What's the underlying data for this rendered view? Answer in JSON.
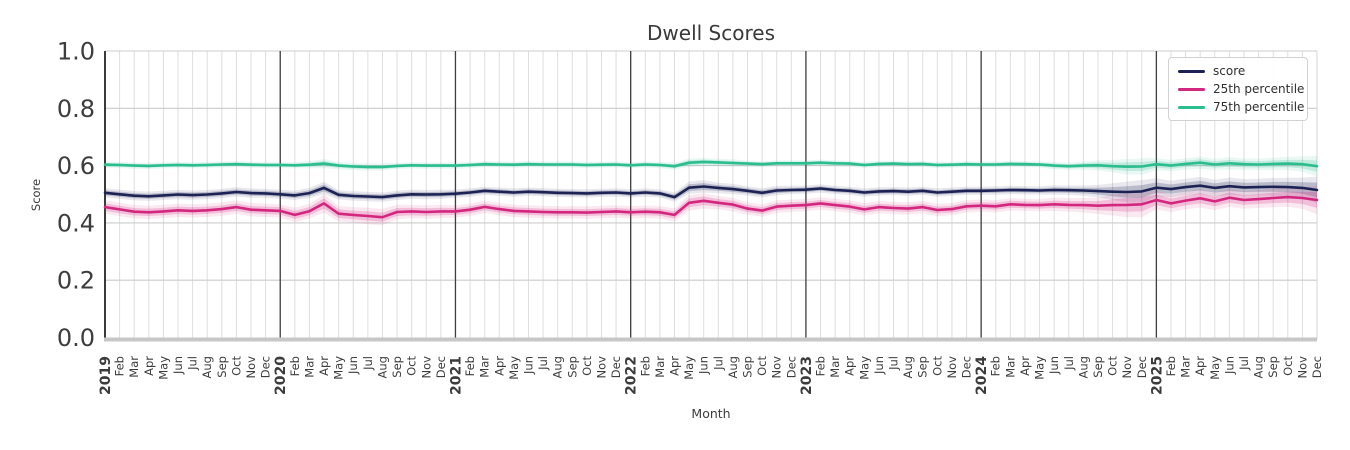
{
  "chart_data": {
    "type": "line",
    "title": "Dwell Scores",
    "xlabel": "Month",
    "ylabel": "Score",
    "ylim": [
      0.0,
      1.0
    ],
    "yticks": [
      0.0,
      0.2,
      0.4,
      0.6,
      0.8,
      1.0
    ],
    "ytick_labels": [
      "0.0",
      "0.2",
      "0.4",
      "0.6",
      "0.8",
      "1.0"
    ],
    "grid": true,
    "legend_position": "upper right",
    "x_labels": [
      "2019",
      "Feb",
      "Mar",
      "Apr",
      "May",
      "Jun",
      "Jul",
      "Aug",
      "Sep",
      "Oct",
      "Nov",
      "Dec",
      "2020",
      "Feb",
      "Mar",
      "Apr",
      "May",
      "Jun",
      "Jul",
      "Aug",
      "Sep",
      "Oct",
      "Nov",
      "Dec",
      "2021",
      "Feb",
      "Mar",
      "Apr",
      "May",
      "Jun",
      "Jul",
      "Aug",
      "Sep",
      "Oct",
      "Nov",
      "Dec",
      "2022",
      "Feb",
      "Mar",
      "Apr",
      "May",
      "Jun",
      "Jul",
      "Aug",
      "Sep",
      "Oct",
      "Nov",
      "Dec",
      "2023",
      "Feb",
      "Mar",
      "Apr",
      "May",
      "Jun",
      "Jul",
      "Aug",
      "Sep",
      "Oct",
      "Nov",
      "Dec",
      "2024",
      "Feb",
      "Mar",
      "Apr",
      "May",
      "Jun",
      "Jul",
      "Aug",
      "Sep",
      "Oct",
      "Nov",
      "Dec",
      "2025",
      "Feb",
      "Mar",
      "Apr",
      "May",
      "Jun",
      "Jul",
      "Aug",
      "Sep",
      "Oct",
      "Nov",
      "Dec"
    ],
    "year_tick_indices": [
      0,
      12,
      24,
      36,
      48,
      60,
      72
    ],
    "series": [
      {
        "name": "score",
        "color": "#1c2254",
        "values": [
          0.505,
          0.5,
          0.495,
          0.493,
          0.496,
          0.499,
          0.497,
          0.499,
          0.503,
          0.508,
          0.504,
          0.503,
          0.5,
          0.496,
          0.504,
          0.522,
          0.498,
          0.494,
          0.492,
          0.49,
          0.496,
          0.5,
          0.499,
          0.5,
          0.502,
          0.506,
          0.512,
          0.509,
          0.506,
          0.509,
          0.507,
          0.505,
          0.504,
          0.503,
          0.505,
          0.506,
          0.503,
          0.506,
          0.503,
          0.49,
          0.523,
          0.527,
          0.522,
          0.518,
          0.512,
          0.505,
          0.513,
          0.515,
          0.516,
          0.52,
          0.515,
          0.512,
          0.506,
          0.51,
          0.511,
          0.509,
          0.512,
          0.506,
          0.509,
          0.512,
          0.512,
          0.513,
          0.515,
          0.514,
          0.513,
          0.515,
          0.514,
          0.513,
          0.511,
          0.509,
          0.508,
          0.51,
          0.523,
          0.518,
          0.525,
          0.53,
          0.522,
          0.528,
          0.524,
          0.525,
          0.526,
          0.525,
          0.522,
          0.515
        ],
        "band": [
          0.009,
          0.009,
          0.009,
          0.009,
          0.009,
          0.009,
          0.009,
          0.009,
          0.009,
          0.009,
          0.009,
          0.009,
          0.009,
          0.009,
          0.01,
          0.012,
          0.009,
          0.009,
          0.009,
          0.009,
          0.009,
          0.009,
          0.009,
          0.009,
          0.008,
          0.008,
          0.008,
          0.008,
          0.008,
          0.008,
          0.008,
          0.008,
          0.008,
          0.008,
          0.008,
          0.008,
          0.008,
          0.008,
          0.008,
          0.009,
          0.012,
          0.012,
          0.01,
          0.01,
          0.009,
          0.009,
          0.009,
          0.008,
          0.008,
          0.008,
          0.008,
          0.008,
          0.008,
          0.008,
          0.008,
          0.008,
          0.008,
          0.008,
          0.008,
          0.008,
          0.008,
          0.008,
          0.008,
          0.008,
          0.008,
          0.009,
          0.009,
          0.01,
          0.012,
          0.016,
          0.02,
          0.022,
          0.018,
          0.016,
          0.016,
          0.017,
          0.016,
          0.017,
          0.016,
          0.016,
          0.017,
          0.018,
          0.02,
          0.026
        ]
      },
      {
        "name": "25th percentile",
        "color": "#d3267f",
        "values": [
          0.455,
          0.447,
          0.439,
          0.437,
          0.44,
          0.444,
          0.442,
          0.444,
          0.448,
          0.455,
          0.446,
          0.444,
          0.442,
          0.428,
          0.441,
          0.468,
          0.432,
          0.428,
          0.424,
          0.42,
          0.438,
          0.44,
          0.438,
          0.44,
          0.44,
          0.446,
          0.456,
          0.448,
          0.442,
          0.44,
          0.438,
          0.437,
          0.437,
          0.436,
          0.438,
          0.44,
          0.437,
          0.439,
          0.437,
          0.428,
          0.47,
          0.477,
          0.47,
          0.464,
          0.45,
          0.443,
          0.457,
          0.46,
          0.462,
          0.468,
          0.462,
          0.457,
          0.447,
          0.455,
          0.452,
          0.45,
          0.455,
          0.445,
          0.448,
          0.458,
          0.46,
          0.458,
          0.465,
          0.463,
          0.462,
          0.465,
          0.463,
          0.462,
          0.46,
          0.462,
          0.463,
          0.465,
          0.48,
          0.468,
          0.478,
          0.486,
          0.475,
          0.488,
          0.48,
          0.483,
          0.487,
          0.49,
          0.487,
          0.48
        ],
        "band": [
          0.013,
          0.013,
          0.013,
          0.013,
          0.013,
          0.013,
          0.013,
          0.013,
          0.013,
          0.013,
          0.013,
          0.013,
          0.013,
          0.014,
          0.014,
          0.018,
          0.015,
          0.015,
          0.016,
          0.016,
          0.014,
          0.013,
          0.013,
          0.013,
          0.012,
          0.012,
          0.012,
          0.012,
          0.012,
          0.012,
          0.012,
          0.012,
          0.012,
          0.012,
          0.012,
          0.012,
          0.012,
          0.012,
          0.012,
          0.013,
          0.015,
          0.015,
          0.013,
          0.013,
          0.012,
          0.012,
          0.012,
          0.012,
          0.012,
          0.012,
          0.012,
          0.012,
          0.012,
          0.012,
          0.012,
          0.012,
          0.012,
          0.012,
          0.012,
          0.012,
          0.012,
          0.012,
          0.012,
          0.012,
          0.012,
          0.013,
          0.013,
          0.014,
          0.016,
          0.02,
          0.024,
          0.025,
          0.018,
          0.017,
          0.017,
          0.018,
          0.017,
          0.018,
          0.017,
          0.017,
          0.018,
          0.019,
          0.021,
          0.028
        ]
      },
      {
        "name": "75th percentile",
        "color": "#2cbd8f",
        "values": [
          0.603,
          0.602,
          0.6,
          0.599,
          0.601,
          0.602,
          0.601,
          0.602,
          0.604,
          0.605,
          0.603,
          0.602,
          0.602,
          0.601,
          0.603,
          0.607,
          0.6,
          0.597,
          0.595,
          0.595,
          0.599,
          0.601,
          0.6,
          0.6,
          0.6,
          0.602,
          0.605,
          0.604,
          0.603,
          0.605,
          0.604,
          0.604,
          0.604,
          0.602,
          0.603,
          0.604,
          0.601,
          0.604,
          0.602,
          0.598,
          0.61,
          0.613,
          0.611,
          0.609,
          0.607,
          0.605,
          0.608,
          0.608,
          0.608,
          0.61,
          0.608,
          0.607,
          0.602,
          0.606,
          0.607,
          0.605,
          0.606,
          0.602,
          0.603,
          0.605,
          0.604,
          0.604,
          0.606,
          0.605,
          0.604,
          0.6,
          0.598,
          0.6,
          0.601,
          0.598,
          0.596,
          0.597,
          0.605,
          0.6,
          0.606,
          0.61,
          0.604,
          0.608,
          0.605,
          0.604,
          0.606,
          0.607,
          0.605,
          0.598
        ],
        "band": [
          0.006,
          0.006,
          0.006,
          0.006,
          0.006,
          0.006,
          0.006,
          0.006,
          0.006,
          0.006,
          0.006,
          0.006,
          0.006,
          0.006,
          0.007,
          0.009,
          0.007,
          0.007,
          0.007,
          0.007,
          0.006,
          0.006,
          0.006,
          0.006,
          0.006,
          0.006,
          0.006,
          0.006,
          0.006,
          0.006,
          0.006,
          0.006,
          0.006,
          0.006,
          0.006,
          0.006,
          0.006,
          0.006,
          0.006,
          0.007,
          0.008,
          0.008,
          0.007,
          0.007,
          0.006,
          0.006,
          0.006,
          0.006,
          0.006,
          0.006,
          0.006,
          0.006,
          0.006,
          0.006,
          0.006,
          0.006,
          0.006,
          0.006,
          0.006,
          0.006,
          0.006,
          0.006,
          0.006,
          0.006,
          0.006,
          0.007,
          0.007,
          0.008,
          0.01,
          0.012,
          0.015,
          0.016,
          0.012,
          0.011,
          0.011,
          0.012,
          0.011,
          0.012,
          0.011,
          0.011,
          0.012,
          0.013,
          0.015,
          0.02
        ]
      }
    ],
    "colors": {
      "grid_minor": "#dedede",
      "grid_major": "#cccccc",
      "year_line": "#3f3f3f",
      "left_spine": "#2a2a2a",
      "bottom_spine": "#c7c7c7",
      "right_spine": "#d4d4d4",
      "text": "#3d3d3d"
    }
  }
}
